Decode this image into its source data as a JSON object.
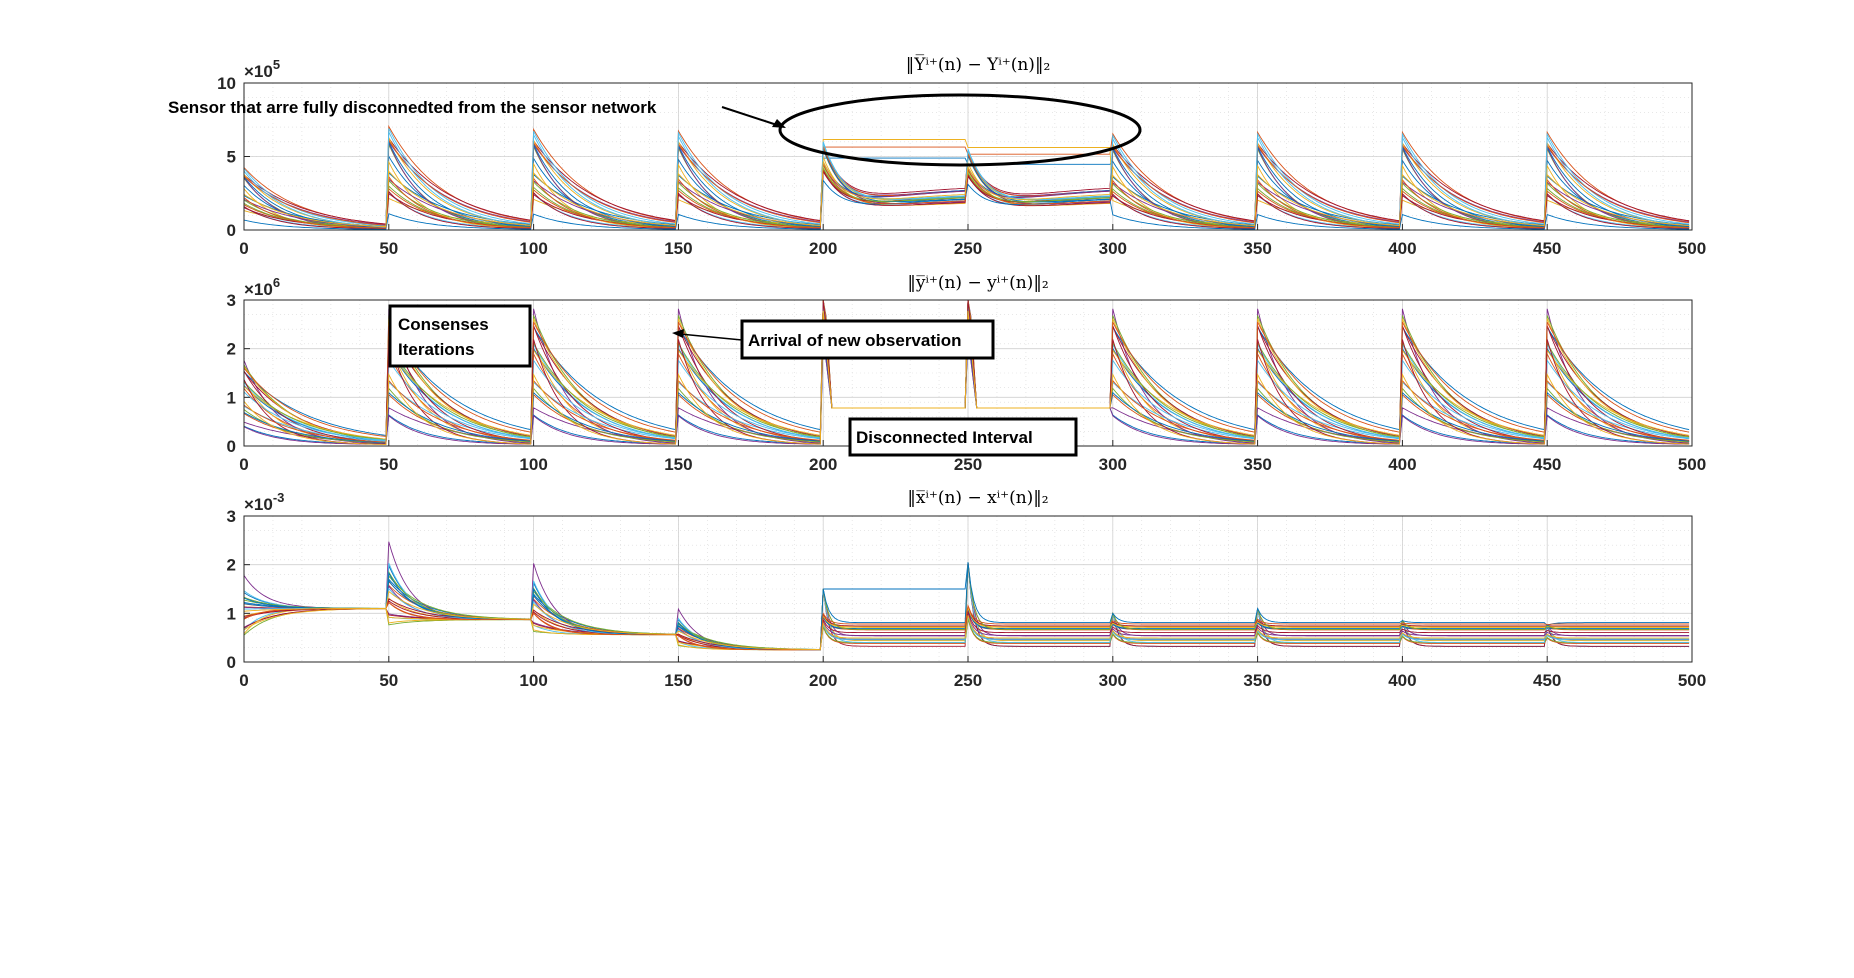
{
  "figure": {
    "colors": [
      "#0072BD",
      "#D95319",
      "#EDB120",
      "#7E2F8E",
      "#77AC30",
      "#4DBEEE",
      "#A2142F"
    ],
    "gridColor": "#d9d9d9",
    "annotations": {
      "sensor_disconnected": "Sensor that arre fully disconnedted from the sensor network",
      "consensus_line1": "Consenses",
      "consensus_line2": "Iterations",
      "arrival": "Arrival of new observation",
      "disconnected_interval": "Disconnected Interval"
    }
  },
  "chart_data": [
    {
      "type": "line",
      "title_base": "Y",
      "title_text": "‖Y̅ⁱ⁺(n) − Yⁱ⁺(n)‖₂",
      "xlim": [
        0,
        500
      ],
      "ylim": [
        0,
        10
      ],
      "xticks": [
        0,
        50,
        100,
        150,
        200,
        250,
        300,
        350,
        400,
        450,
        500
      ],
      "yticks": [
        0,
        5,
        10
      ],
      "exponent": "×10",
      "exponent_power": "5",
      "grid": true,
      "legend": "none",
      "series_description": "many sensor traces; resets every 50 iterations",
      "peak_values": [
        4.2,
        7.0,
        6.8,
        6.7,
        6.8,
        6.2,
        6.5,
        6.6,
        6.6,
        6.6
      ]
    },
    {
      "type": "line",
      "title_text": "‖y̅ⁱ⁺(n) − yⁱ⁺(n)‖₂",
      "xlim": [
        0,
        500
      ],
      "ylim": [
        0,
        3
      ],
      "xticks": [
        0,
        50,
        100,
        150,
        200,
        250,
        300,
        350,
        400,
        450,
        500
      ],
      "yticks": [
        0,
        1,
        2,
        3
      ],
      "exponent": "×10",
      "exponent_power": "6",
      "grid": true,
      "legend": "none",
      "peak_values": [
        1.8,
        2.9,
        2.9,
        2.9,
        2.9,
        2.9,
        2.9,
        2.9,
        2.9,
        2.9
      ]
    },
    {
      "type": "line",
      "title_text": "‖x̅ⁱ⁺(n) − xⁱ⁺(n)‖₂",
      "xlim": [
        0,
        500
      ],
      "ylim": [
        0,
        3
      ],
      "xticks": [
        0,
        50,
        100,
        150,
        200,
        250,
        300,
        350,
        400,
        450,
        500
      ],
      "yticks": [
        0,
        1,
        2,
        3
      ],
      "exponent": "×10",
      "exponent_power": "-3",
      "grid": true,
      "legend": "none",
      "peak_values": [
        1.8,
        2.5,
        2.05,
        1.1,
        1.5,
        2.05,
        1.0,
        1.1,
        0.85,
        0.75
      ]
    }
  ]
}
